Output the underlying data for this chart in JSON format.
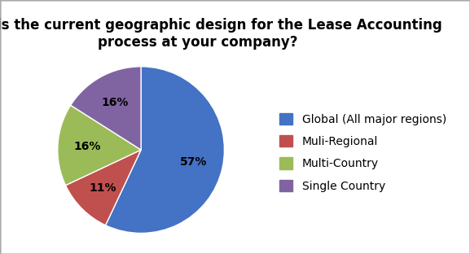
{
  "title": "What is the current geographic design for the Lease Accounting\nprocess at your company?",
  "slices": [
    57,
    11,
    16,
    16
  ],
  "labels": [
    "Global (All major regions)",
    "Muli-Regional",
    "Multi-Country",
    "Single Country"
  ],
  "colors": [
    "#4472C4",
    "#C0504D",
    "#9BBB59",
    "#8064A2"
  ],
  "autopct_labels": [
    "57%",
    "11%",
    "16%",
    "16%"
  ],
  "startangle": 90,
  "title_fontsize": 12,
  "legend_fontsize": 10,
  "background_color": "#ffffff"
}
